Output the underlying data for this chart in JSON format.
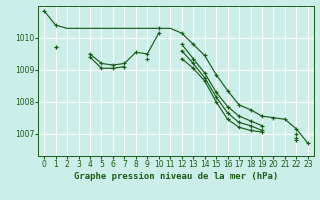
{
  "title": "Graphe pression niveau de la mer (hPa)",
  "background_color": "#cceee8",
  "grid_color": "#ffffff",
  "line_color": "#1a5c1a",
  "x_ticks": [
    0,
    1,
    2,
    3,
    4,
    5,
    6,
    7,
    8,
    9,
    10,
    11,
    12,
    13,
    14,
    15,
    16,
    17,
    18,
    19,
    20,
    21,
    22,
    23
  ],
  "y_ticks": [
    1007,
    1008,
    1009,
    1010
  ],
  "ylim": [
    1006.3,
    1011.0
  ],
  "xlim": [
    -0.5,
    23.5
  ],
  "series": [
    [
      1010.85,
      1010.4,
      1010.3,
      1010.3,
      1010.3,
      1010.3,
      1010.3,
      1010.3,
      1010.3,
      1010.3,
      1010.3,
      1010.3,
      1010.15,
      1009.8,
      1009.45,
      1008.85,
      1008.35,
      1007.9,
      1007.75,
      1007.55,
      1007.5,
      1007.45,
      1007.15,
      1006.7
    ],
    [
      null,
      1009.7,
      null,
      null,
      1009.5,
      1009.2,
      1009.15,
      1009.2,
      1009.55,
      1009.5,
      1010.15,
      null,
      1009.8,
      1009.35,
      1008.9,
      1008.3,
      1007.85,
      1007.55,
      1007.4,
      1007.25,
      null,
      null,
      1007.0,
      null
    ],
    [
      null,
      1009.7,
      null,
      null,
      1009.4,
      1009.05,
      1009.05,
      1009.1,
      null,
      1009.35,
      null,
      null,
      1009.6,
      1009.2,
      1008.75,
      1008.15,
      1007.65,
      1007.35,
      1007.25,
      1007.1,
      null,
      null,
      1006.85,
      null
    ],
    [
      null,
      null,
      null,
      null,
      null,
      null,
      null,
      null,
      null,
      null,
      null,
      null,
      1009.35,
      1009.05,
      1008.65,
      1008.0,
      1007.45,
      1007.2,
      1007.1,
      1007.05,
      null,
      null,
      1006.8,
      null
    ]
  ],
  "markers": [
    [
      true,
      true,
      false,
      false,
      false,
      false,
      false,
      false,
      false,
      false,
      true,
      false,
      true,
      true,
      true,
      true,
      true,
      true,
      true,
      true,
      true,
      true,
      true,
      true
    ],
    [
      false,
      true,
      false,
      false,
      true,
      true,
      true,
      true,
      true,
      true,
      true,
      false,
      true,
      true,
      true,
      true,
      true,
      true,
      true,
      true,
      false,
      false,
      true,
      false
    ],
    [
      false,
      true,
      false,
      false,
      true,
      true,
      true,
      true,
      false,
      true,
      false,
      false,
      true,
      true,
      true,
      true,
      true,
      true,
      true,
      true,
      false,
      false,
      true,
      false
    ],
    [
      false,
      false,
      false,
      false,
      false,
      false,
      false,
      false,
      false,
      false,
      false,
      false,
      true,
      true,
      true,
      true,
      true,
      true,
      true,
      true,
      false,
      false,
      true,
      false
    ]
  ],
  "title_fontsize": 6.5,
  "tick_fontsize": 5.5
}
